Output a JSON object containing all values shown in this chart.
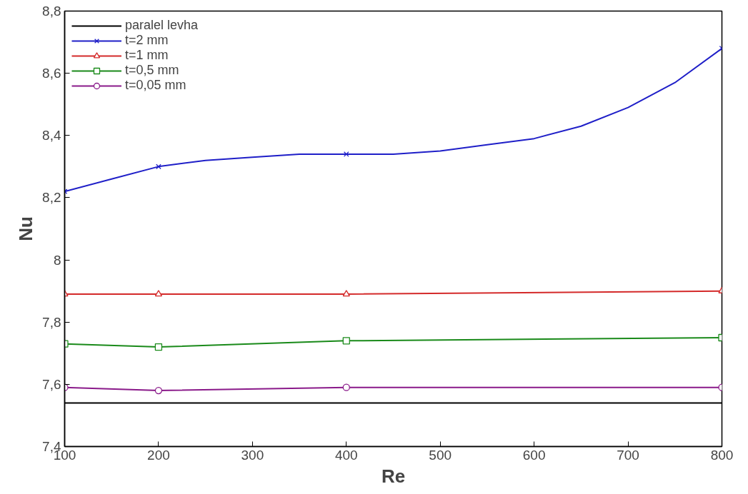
{
  "chart_data": {
    "type": "line",
    "xlabel": "Re",
    "ylabel": "Nu",
    "xlim": [
      100,
      800
    ],
    "ylim": [
      7.4,
      8.8
    ],
    "xticks": [
      100,
      200,
      300,
      400,
      500,
      600,
      700,
      800
    ],
    "yticks": [
      {
        "value": 7.4,
        "label": "7,4"
      },
      {
        "value": 7.6,
        "label": "7,6"
      },
      {
        "value": 7.8,
        "label": "7,8"
      },
      {
        "value": 8,
        "label": "8"
      },
      {
        "value": 8.2,
        "label": "8,2"
      },
      {
        "value": 8.4,
        "label": "8,4"
      },
      {
        "value": 8.6,
        "label": "8,6"
      },
      {
        "value": 8.8,
        "label": "8,8"
      }
    ],
    "grid": false,
    "legend": "top left",
    "line_style": "solid",
    "series": [
      {
        "name": "paralel levha",
        "color": "#000000",
        "x": [
          100,
          800
        ],
        "values": [
          7.54,
          7.54
        ],
        "marker": "none"
      },
      {
        "name": "t=2 mm",
        "color": "#1f1fc8",
        "x": [
          100,
          150,
          200,
          250,
          300,
          350,
          400,
          450,
          500,
          550,
          600,
          650,
          700,
          750,
          800
        ],
        "values": [
          8.22,
          8.26,
          8.3,
          8.32,
          8.33,
          8.34,
          8.34,
          8.34,
          8.35,
          8.37,
          8.39,
          8.43,
          8.49,
          8.57,
          8.68
        ],
        "marker": "none"
      },
      {
        "type": "scatter",
        "color": "#1f1fc8",
        "x": [
          100,
          200,
          400,
          800
        ],
        "values": [
          8.22,
          8.3,
          8.34,
          8.68
        ],
        "marker": "cross"
      },
      {
        "name": "t=1 mm",
        "color": "#d42a2a",
        "x": [
          100,
          200,
          400,
          800
        ],
        "values": [
          7.89,
          7.89,
          7.89,
          7.9
        ],
        "marker": "triangle"
      },
      {
        "name": "t=0,5 mm",
        "color": "#1a8a1a",
        "x": [
          100,
          200,
          400,
          800
        ],
        "values": [
          7.73,
          7.72,
          7.74,
          7.75
        ],
        "marker": "square"
      },
      {
        "name": "t=0,05 mm",
        "color": "#8a1a8a",
        "x": [
          100,
          200,
          400,
          800
        ],
        "values": [
          7.59,
          7.58,
          7.59,
          7.59
        ],
        "marker": "circle"
      }
    ]
  }
}
